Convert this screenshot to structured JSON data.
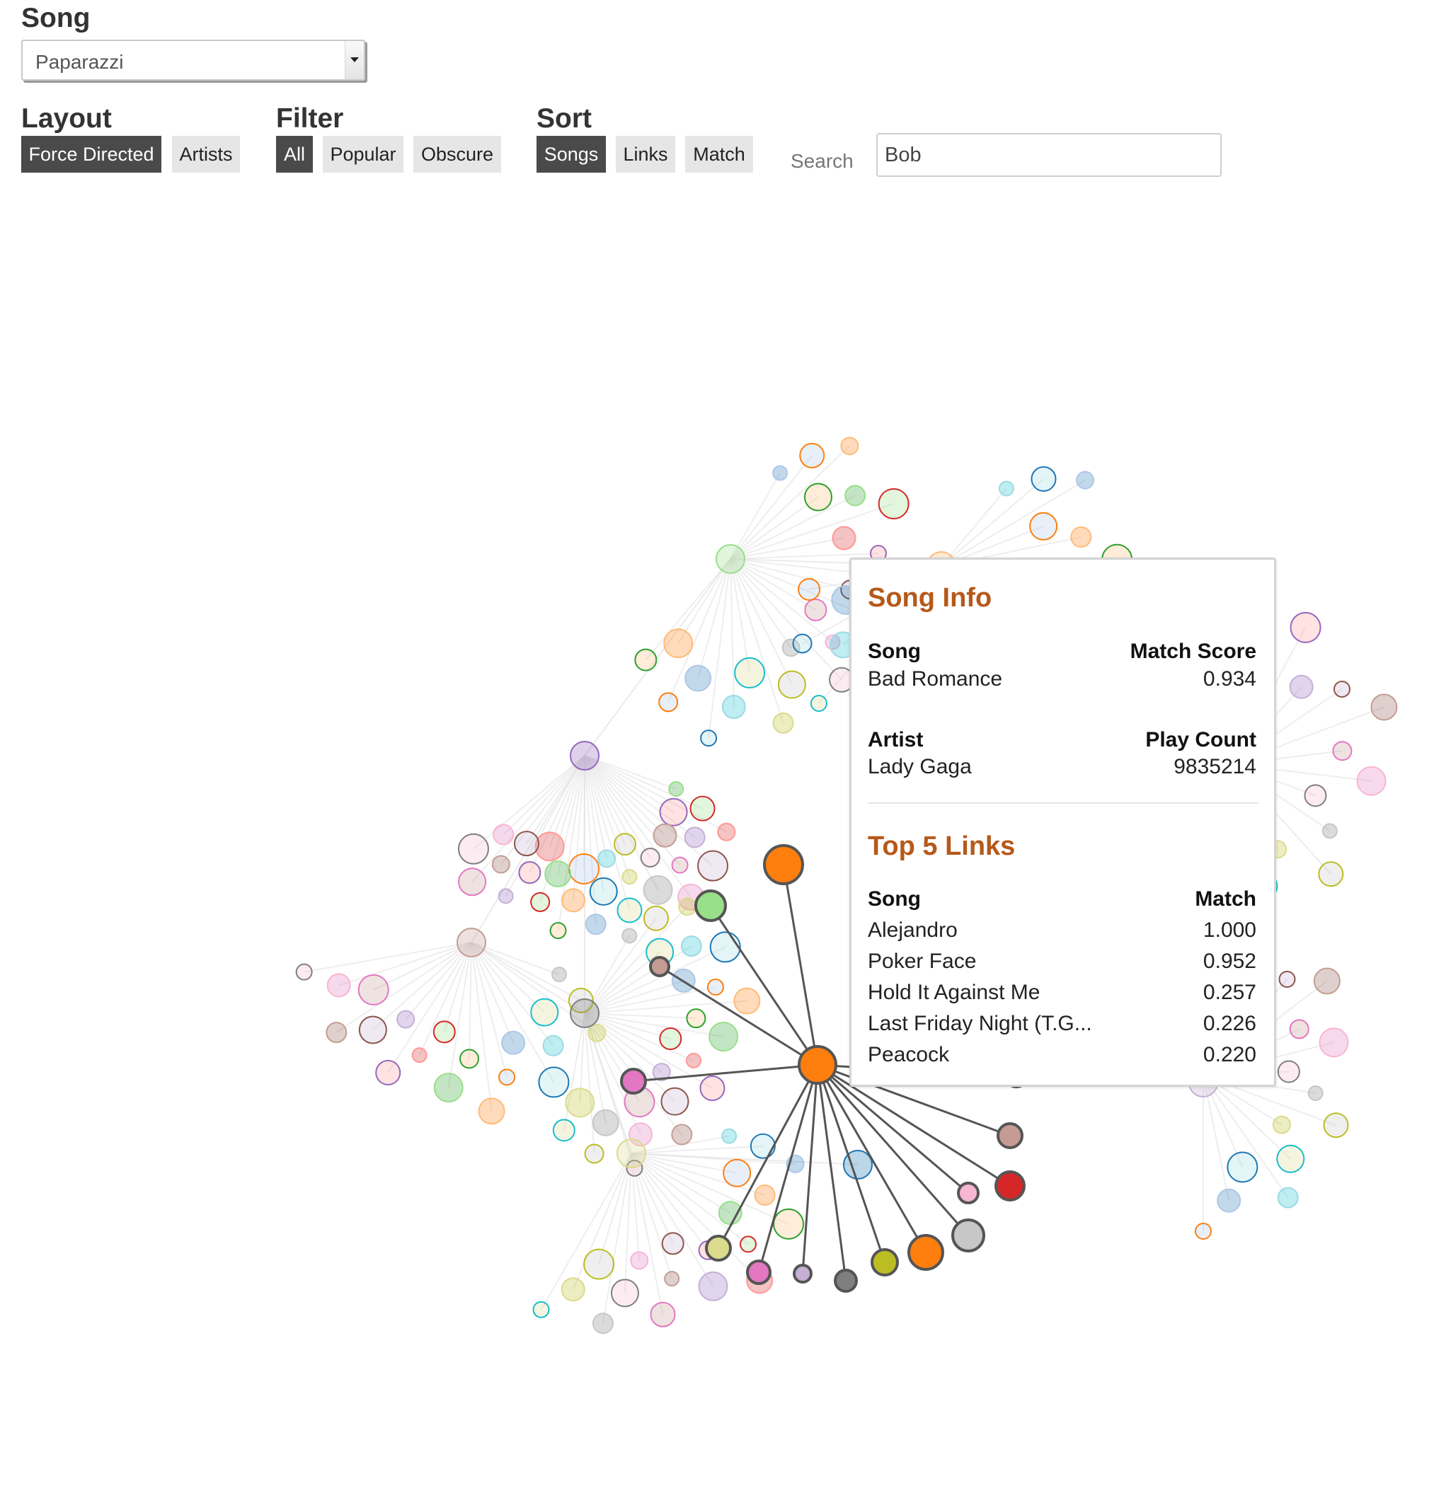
{
  "song_control": {
    "label": "Song",
    "selected": "Paparazzi"
  },
  "layout_control": {
    "label": "Layout",
    "options": [
      "Force Directed",
      "Artists"
    ],
    "active": "Force Directed"
  },
  "filter_control": {
    "label": "Filter",
    "options": [
      "All",
      "Popular",
      "Obscure"
    ],
    "active": "All"
  },
  "sort_control": {
    "label": "Sort",
    "options": [
      "Songs",
      "Links",
      "Match"
    ],
    "active": "Songs"
  },
  "search": {
    "label": "Search",
    "value": "Bob"
  },
  "tooltip": {
    "title": "Song Info",
    "song_header": "Song",
    "song": "Bad Romance",
    "match_header": "Match Score",
    "match_score": "0.934",
    "artist_header": "Artist",
    "artist": "Lady Gaga",
    "play_header": "Play Count",
    "play_count": "9835214",
    "links_title": "Top 5 Links",
    "links_song_header": "Song",
    "links_match_header": "Match",
    "links": [
      {
        "song": "Alejandro",
        "match": "1.000"
      },
      {
        "song": "Poker Face",
        "match": "0.952"
      },
      {
        "song": "Hold It Against Me",
        "match": "0.257"
      },
      {
        "song": "Last Friday Night (T.G...",
        "match": "0.226"
      },
      {
        "song": "Peacock",
        "match": "0.220"
      }
    ]
  },
  "colors": {
    "active_button": "#4a4a4a",
    "inactive_button": "#e6e6e6",
    "tooltip_heading": "#b5591a",
    "focus_node": "#ff7f0e",
    "highlight_link": "#555555",
    "faded_link": "#eeeeee",
    "palette": [
      "#1f77b4",
      "#aec7e8",
      "#ff7f0e",
      "#ffbb78",
      "#2ca02c",
      "#98df8a",
      "#d62728",
      "#ff9896",
      "#9467bd",
      "#c5b0d5",
      "#8c564b",
      "#c49c94",
      "#e377c2",
      "#f7b6d2",
      "#7f7f7f",
      "#c7c7c7",
      "#bcbd22",
      "#dbdb8d",
      "#17becf",
      "#9edae5"
    ]
  }
}
